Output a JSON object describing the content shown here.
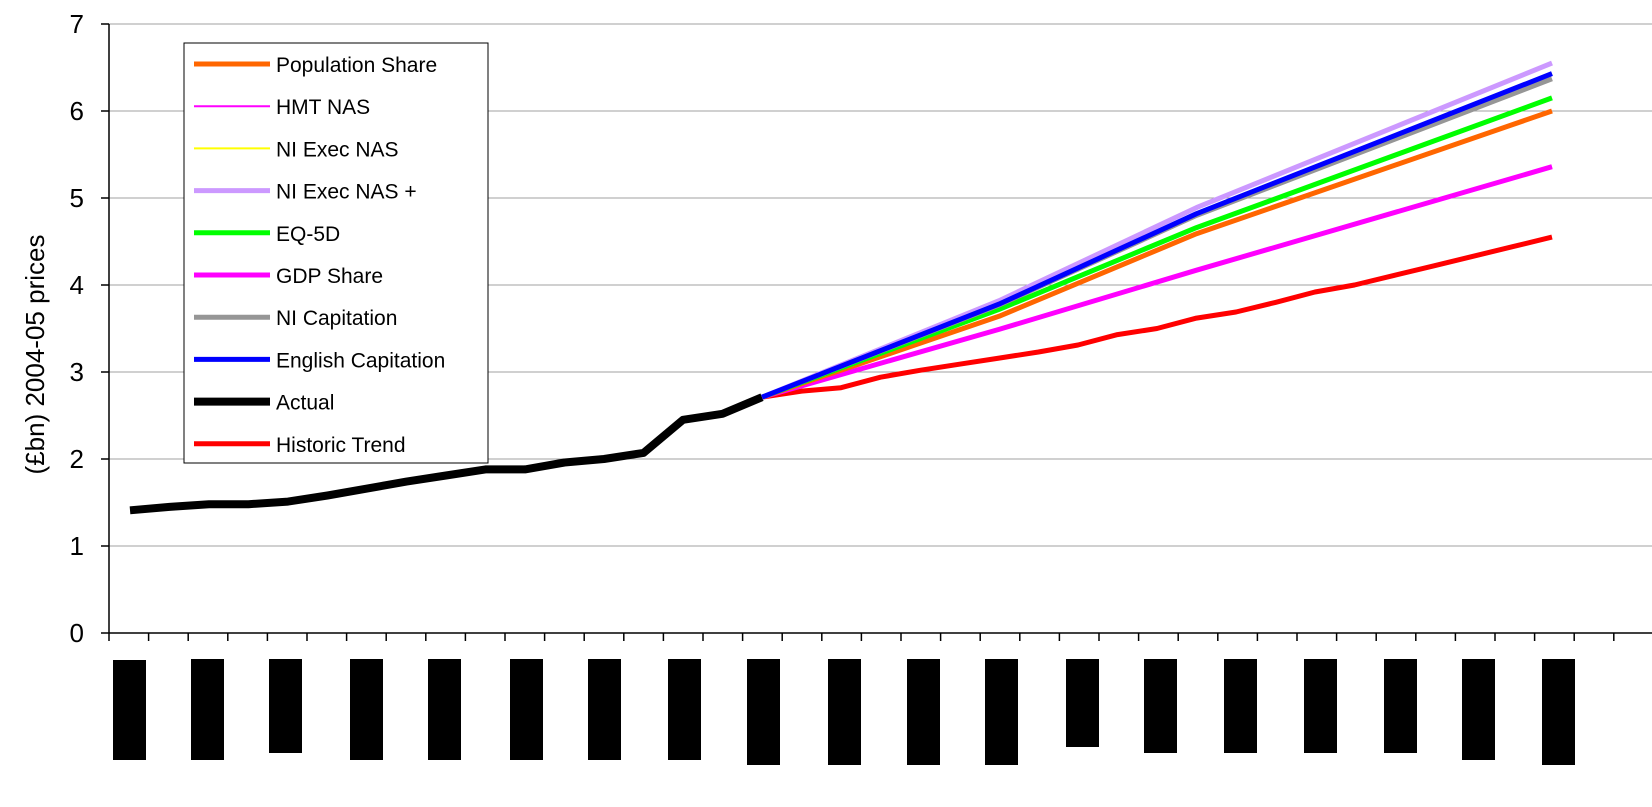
{
  "chart_data": {
    "type": "line",
    "title": "",
    "xlabel": "",
    "ylabel": "(£bn) 2004-05 prices",
    "ylim": [
      0,
      7
    ],
    "yticks": [
      "0",
      "1",
      "2",
      "3",
      "4",
      "5",
      "6",
      "7"
    ],
    "grid": "horizontal",
    "legend_position": "top-left",
    "x": [
      1,
      2,
      3,
      4,
      5,
      6,
      7,
      8,
      9,
      10,
      11,
      12,
      13,
      14,
      15,
      16,
      17,
      18,
      19,
      20,
      21,
      22,
      23,
      24,
      25,
      26,
      27,
      28,
      29,
      30,
      31,
      32,
      33,
      34,
      35,
      36,
      37
    ],
    "series": [
      {
        "name": "Population Share",
        "color": "#FF6600",
        "width": 5,
        "values": [
          null,
          null,
          null,
          null,
          null,
          null,
          null,
          null,
          null,
          null,
          null,
          null,
          null,
          null,
          null,
          null,
          2.71,
          null,
          null,
          null,
          null,
          null,
          3.64,
          null,
          null,
          null,
          null,
          4.59,
          null,
          null,
          null,
          null,
          null,
          null,
          null,
          null,
          6.0
        ]
      },
      {
        "name": "HMT NAS",
        "color": "#FF00FF",
        "width": 2,
        "values": [
          null,
          null,
          null,
          null,
          null,
          null,
          null,
          null,
          null,
          null,
          null,
          null,
          null,
          null,
          null,
          null,
          2.71,
          null,
          null,
          null,
          null,
          null,
          3.49,
          null,
          null,
          null,
          null,
          4.17,
          null,
          null,
          null,
          null,
          null,
          null,
          null,
          null,
          5.36
        ]
      },
      {
        "name": "NI Exec NAS",
        "color": "#FFFF00",
        "width": 2,
        "values": [
          null,
          null,
          null,
          null,
          null,
          null,
          null,
          null,
          null,
          null,
          null,
          null,
          null,
          null,
          null,
          null,
          2.71,
          null,
          null,
          null,
          null,
          null,
          3.78,
          null,
          null,
          null,
          null,
          4.82,
          null,
          null,
          null,
          null,
          null,
          null,
          null,
          null,
          6.43
        ]
      },
      {
        "name": "NI Exec NAS +",
        "color": "#CC99FF",
        "width": 5,
        "values": [
          null,
          null,
          null,
          null,
          null,
          null,
          null,
          null,
          null,
          null,
          null,
          null,
          null,
          null,
          null,
          null,
          2.71,
          null,
          null,
          null,
          null,
          null,
          3.82,
          null,
          null,
          null,
          null,
          4.89,
          null,
          null,
          null,
          null,
          null,
          null,
          null,
          null,
          6.55
        ]
      },
      {
        "name": "EQ-5D",
        "color": "#00FF00",
        "width": 5,
        "values": [
          null,
          null,
          null,
          null,
          null,
          null,
          null,
          null,
          null,
          null,
          null,
          null,
          null,
          null,
          null,
          null,
          2.71,
          null,
          null,
          null,
          null,
          null,
          3.72,
          null,
          null,
          null,
          null,
          4.66,
          null,
          null,
          null,
          null,
          null,
          null,
          null,
          null,
          6.15
        ]
      },
      {
        "name": "GDP Share",
        "color": "#FF00FF",
        "width": 5,
        "values": [
          null,
          null,
          null,
          null,
          null,
          null,
          null,
          null,
          null,
          null,
          null,
          null,
          null,
          null,
          null,
          null,
          2.71,
          null,
          null,
          null,
          null,
          null,
          3.49,
          null,
          null,
          null,
          null,
          4.17,
          null,
          null,
          null,
          null,
          null,
          null,
          null,
          null,
          5.36
        ]
      },
      {
        "name": "NI Capitation",
        "color": "#969696",
        "width": 5,
        "values": [
          null,
          null,
          null,
          null,
          null,
          null,
          null,
          null,
          null,
          null,
          null,
          null,
          null,
          null,
          null,
          null,
          2.71,
          null,
          null,
          null,
          null,
          null,
          3.77,
          null,
          null,
          null,
          null,
          4.8,
          null,
          null,
          null,
          null,
          null,
          null,
          null,
          null,
          6.37
        ]
      },
      {
        "name": "English Capitation",
        "color": "#0000FF",
        "width": 5,
        "values": [
          null,
          null,
          null,
          null,
          null,
          null,
          null,
          null,
          null,
          null,
          null,
          null,
          null,
          null,
          null,
          null,
          2.71,
          null,
          null,
          null,
          null,
          null,
          3.78,
          null,
          null,
          null,
          null,
          4.82,
          null,
          null,
          null,
          null,
          null,
          null,
          null,
          null,
          6.43
        ]
      },
      {
        "name": "Actual",
        "color": "#000000",
        "width": 8,
        "values": [
          1.41,
          1.45,
          1.48,
          1.48,
          1.51,
          1.58,
          1.66,
          1.74,
          1.81,
          1.88,
          1.88,
          1.96,
          2.0,
          2.07,
          2.45,
          2.52,
          2.71,
          null,
          null,
          null,
          null,
          null,
          null,
          null,
          null,
          null,
          null,
          null,
          null,
          null,
          null,
          null,
          null,
          null,
          null,
          null,
          null
        ]
      },
      {
        "name": "Historic Trend",
        "color": "#FF0000",
        "width": 5,
        "values": [
          null,
          null,
          null,
          null,
          null,
          null,
          null,
          null,
          null,
          null,
          null,
          null,
          null,
          null,
          null,
          null,
          2.71,
          2.78,
          2.82,
          2.94,
          3.02,
          3.09,
          3.16,
          3.23,
          3.31,
          3.43,
          3.5,
          3.62,
          3.69,
          3.8,
          3.92,
          4.0,
          4.11,
          4.22,
          4.33,
          4.44,
          4.55
        ]
      }
    ],
    "x_labels_obscured": 19
  }
}
